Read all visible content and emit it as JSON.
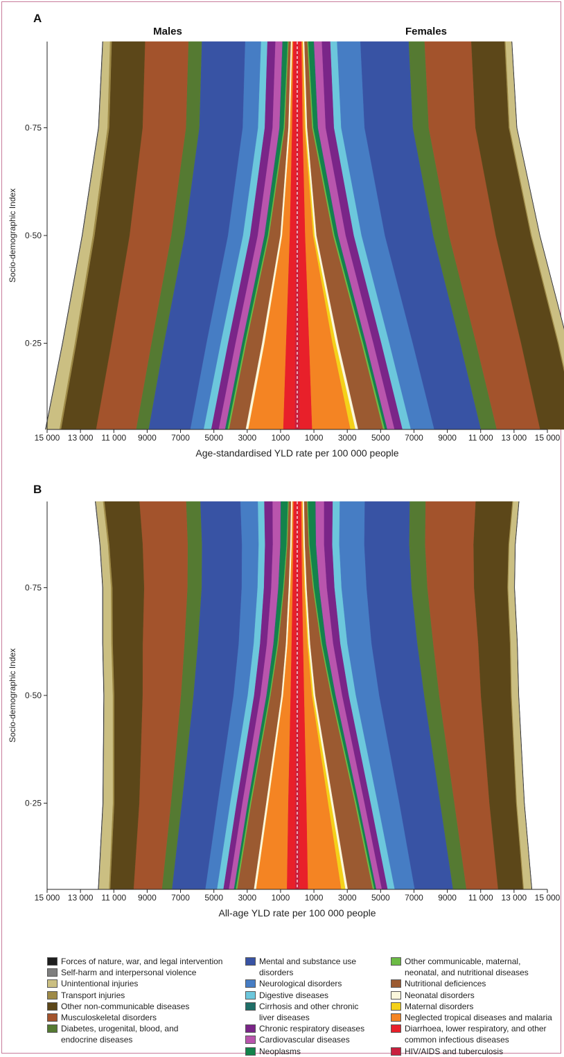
{
  "panels": [
    {
      "letter": "A",
      "male_label": "Males",
      "female_label": "Females",
      "xlabel": "Age-standardised YLD rate per 100 000 people",
      "ylabel": "Socio-demographic Index",
      "yticks": [
        "0·25",
        "0·50",
        "0·75"
      ],
      "xticks": [
        "15 000",
        "13 000",
        "11 000",
        "9000",
        "7000",
        "5000",
        "3000",
        "1000",
        "1000",
        "3000",
        "5000",
        "7000",
        "9000",
        "11 000",
        "13 000",
        "15 000"
      ]
    },
    {
      "letter": "B",
      "xlabel": "All-age YLD rate per 100 000 people",
      "ylabel": "Socio-demographic Index",
      "yticks": [
        "0·25",
        "0·50",
        "0·75"
      ],
      "xticks": [
        "15 000",
        "13 000",
        "11 000",
        "9000",
        "7000",
        "5000",
        "3000",
        "1000",
        "1000",
        "3000",
        "5000",
        "7000",
        "9000",
        "11 000",
        "13 000",
        "15 000"
      ]
    }
  ],
  "legend": [
    {
      "label": "Forces of nature, war, and legal intervention",
      "color": "#1e1e1e"
    },
    {
      "label": "Self-harm and interpersonal violence",
      "color": "#7f7f7f"
    },
    {
      "label": "Unintentional injuries",
      "color": "#cbbf82"
    },
    {
      "label": "Transport injuries",
      "color": "#9e8a47"
    },
    {
      "label": "Other non-communicable diseases",
      "color": "#5c4719"
    },
    {
      "label": "Musculoskeletal disorders",
      "color": "#a3532c"
    },
    {
      "label": "Diabetes, urogenital, blood, and endocrine diseases",
      "color": "#557a32"
    },
    {
      "label": "Mental and substance use disorders",
      "color": "#3853a4"
    },
    {
      "label": "Neurological disorders",
      "color": "#467dc4"
    },
    {
      "label": "Digestive diseases",
      "color": "#6cc7dc"
    },
    {
      "label": "Cirrhosis and other chronic liver diseases",
      "color": "#1f6e67"
    },
    {
      "label": "Chronic respiratory diseases",
      "color": "#7a2588"
    },
    {
      "label": "Cardiovascular diseases",
      "color": "#b955ad"
    },
    {
      "label": "Neoplasms",
      "color": "#13834b"
    },
    {
      "label": "Other communicable, maternal, neonatal, and nutritional diseases",
      "color": "#6cbb45"
    },
    {
      "label": "Nutritional deficiences",
      "color": "#9b5a31"
    },
    {
      "label": "Neonatal disorders",
      "color": "#fbf7dc"
    },
    {
      "label": "Maternal disorders",
      "color": "#f4d11a"
    },
    {
      "label": "Neglected tropical diseases and malaria",
      "color": "#f48423"
    },
    {
      "label": "Diarrhoea, lower respiratory, and other common infectious diseases",
      "color": "#e8202a"
    },
    {
      "label": "HIV/AIDS and tuberculosis",
      "color": "#c81f3d"
    }
  ],
  "chart_data": [
    {
      "type": "area",
      "title": "A",
      "xlabel": "Age-standardised YLD rate per 100 000 people",
      "ylabel": "Socio-demographic Index",
      "ylim": [
        0.05,
        0.95
      ],
      "xlim": [
        -15000,
        15000
      ],
      "sdi": [
        0.05,
        0.25,
        0.5,
        0.75,
        0.95
      ],
      "series": [
        {
          "name": "HIV/AIDS and tuberculosis",
          "male": [
            150,
            120,
            80,
            60,
            50
          ],
          "female": [
            150,
            120,
            80,
            60,
            50
          ]
        },
        {
          "name": "Diarrhoea, lower respiratory, and other common infectious diseases",
          "male": [
            700,
            560,
            380,
            260,
            200
          ],
          "female": [
            750,
            600,
            400,
            270,
            210
          ]
        },
        {
          "name": "Neglected tropical diseases and malaria",
          "male": [
            2100,
            1300,
            460,
            130,
            60
          ],
          "female": [
            2300,
            1400,
            480,
            130,
            60
          ]
        },
        {
          "name": "Maternal disorders",
          "male": [
            0,
            0,
            0,
            0,
            0
          ],
          "female": [
            300,
            200,
            90,
            50,
            30
          ]
        },
        {
          "name": "Neonatal disorders",
          "male": [
            150,
            140,
            100,
            90,
            80
          ],
          "female": [
            160,
            150,
            110,
            90,
            80
          ]
        },
        {
          "name": "Nutritional deficiences",
          "male": [
            1000,
            950,
            680,
            220,
            140
          ],
          "female": [
            1500,
            1400,
            1000,
            300,
            180
          ]
        },
        {
          "name": "Other communicable, maternal, neonatal, and nutritional diseases",
          "male": [
            90,
            80,
            70,
            60,
            50
          ],
          "female": [
            100,
            90,
            80,
            70,
            60
          ]
        },
        {
          "name": "Neoplasms",
          "male": [
            110,
            130,
            170,
            220,
            280
          ],
          "female": [
            110,
            130,
            180,
            240,
            300
          ]
        },
        {
          "name": "Cirrhosis and other chronic liver diseases",
          "male": [
            40,
            40,
            40,
            40,
            40
          ],
          "female": [
            40,
            40,
            40,
            40,
            40
          ]
        },
        {
          "name": "Cardiovascular diseases",
          "male": [
            380,
            390,
            400,
            410,
            420
          ],
          "female": [
            430,
            440,
            450,
            460,
            470
          ]
        },
        {
          "name": "Chronic respiratory diseases",
          "male": [
            450,
            450,
            460,
            470,
            480
          ],
          "female": [
            480,
            480,
            490,
            500,
            510
          ]
        },
        {
          "name": "Digestive diseases",
          "male": [
            450,
            440,
            420,
            400,
            380
          ],
          "female": [
            500,
            480,
            460,
            430,
            400
          ]
        },
        {
          "name": "Neurological disorders",
          "male": [
            800,
            850,
            900,
            920,
            950
          ],
          "female": [
            1400,
            1400,
            1400,
            1400,
            1400
          ]
        },
        {
          "name": "Mental and substance use disorders",
          "male": [
            2500,
            2550,
            2600,
            2600,
            2600
          ],
          "female": [
            2800,
            2850,
            2900,
            2900,
            2900
          ]
        },
        {
          "name": "Diabetes, urogenital, blood, and endocrine diseases",
          "male": [
            750,
            750,
            800,
            800,
            800
          ],
          "female": [
            950,
            950,
            950,
            950,
            950
          ]
        },
        {
          "name": "Musculoskeletal disorders",
          "male": [
            2400,
            2400,
            2500,
            2600,
            2600
          ],
          "female": [
            2600,
            2700,
            2800,
            2800,
            2800
          ]
        },
        {
          "name": "Other non-communicable diseases",
          "male": [
            2100,
            2100,
            2100,
            2000,
            2000
          ],
          "female": [
            2200,
            2200,
            2100,
            2000,
            2000
          ]
        },
        {
          "name": "Transport injuries",
          "male": [
            100,
            100,
            110,
            110,
            110
          ],
          "female": [
            60,
            60,
            60,
            60,
            60
          ]
        },
        {
          "name": "Unintentional injuries",
          "male": [
            800,
            700,
            600,
            500,
            400
          ],
          "female": [
            600,
            520,
            460,
            400,
            350
          ]
        },
        {
          "name": "Self-harm and interpersonal violence",
          "male": [
            30,
            30,
            30,
            30,
            30
          ],
          "female": [
            20,
            20,
            20,
            20,
            20
          ]
        },
        {
          "name": "Forces of nature, war, and legal intervention",
          "male": [
            10,
            10,
            10,
            10,
            10
          ],
          "female": [
            10,
            10,
            10,
            10,
            10
          ]
        }
      ]
    },
    {
      "type": "area",
      "title": "B",
      "xlabel": "All-age YLD rate per 100 000 people",
      "ylabel": "Socio-demographic Index",
      "ylim": [
        0.05,
        0.95
      ],
      "xlim": [
        -15000,
        15000
      ],
      "sdi": [
        0.05,
        0.25,
        0.5,
        0.62,
        0.75,
        0.85,
        0.95
      ],
      "series": [
        {
          "name": "HIV/AIDS and tuberculosis",
          "male": [
            130,
            110,
            80,
            70,
            60,
            55,
            50
          ],
          "female": [
            130,
            110,
            80,
            70,
            60,
            55,
            50
          ]
        },
        {
          "name": "Diarrhoea, lower respiratory, and other common infectious diseases",
          "male": [
            500,
            440,
            330,
            280,
            230,
            200,
            180
          ],
          "female": [
            520,
            450,
            340,
            290,
            240,
            210,
            190
          ]
        },
        {
          "name": "Neglected tropical diseases and malaria",
          "male": [
            1850,
            1200,
            450,
            250,
            140,
            90,
            70
          ],
          "female": [
            2000,
            1300,
            470,
            260,
            140,
            90,
            70
          ]
        },
        {
          "name": "Maternal disorders",
          "male": [
            0,
            0,
            0,
            0,
            0,
            0,
            0
          ],
          "female": [
            250,
            180,
            90,
            60,
            40,
            30,
            25
          ]
        },
        {
          "name": "Neonatal disorders",
          "male": [
            130,
            120,
            100,
            90,
            90,
            80,
            80
          ],
          "female": [
            140,
            130,
            110,
            100,
            90,
            80,
            80
          ]
        },
        {
          "name": "Nutritional deficiences",
          "male": [
            1000,
            900,
            650,
            450,
            280,
            180,
            140
          ],
          "female": [
            1500,
            1300,
            950,
            650,
            380,
            230,
            180
          ]
        },
        {
          "name": "Other communicable, maternal, neonatal, and nutritional diseases",
          "male": [
            80,
            70,
            60,
            60,
            50,
            50,
            50
          ],
          "female": [
            90,
            80,
            70,
            60,
            60,
            50,
            50
          ]
        },
        {
          "name": "Neoplasms",
          "male": [
            90,
            110,
            150,
            200,
            260,
            330,
            400
          ],
          "female": [
            90,
            110,
            160,
            210,
            280,
            350,
            420
          ]
        },
        {
          "name": "Cirrhosis and other chronic liver diseases",
          "male": [
            30,
            30,
            40,
            40,
            40,
            40,
            40
          ],
          "female": [
            30,
            30,
            40,
            40,
            40,
            40,
            40
          ]
        },
        {
          "name": "Cardiovascular diseases",
          "male": [
            300,
            320,
            360,
            390,
            420,
            450,
            480
          ],
          "female": [
            330,
            350,
            390,
            420,
            450,
            480,
            510
          ]
        },
        {
          "name": "Chronic respiratory diseases",
          "male": [
            330,
            350,
            380,
            410,
            440,
            470,
            500
          ],
          "female": [
            350,
            370,
            400,
            430,
            460,
            490,
            520
          ]
        },
        {
          "name": "Digestive diseases",
          "male": [
            380,
            380,
            380,
            380,
            380,
            380,
            380
          ],
          "female": [
            420,
            420,
            420,
            420,
            420,
            420,
            420
          ]
        },
        {
          "name": "Neurological disorders",
          "male": [
            700,
            750,
            850,
            900,
            950,
            1000,
            1050
          ],
          "female": [
            1200,
            1300,
            1400,
            1450,
            1500,
            1500,
            1500
          ]
        },
        {
          "name": "Mental and substance use disorders",
          "male": [
            2000,
            2150,
            2400,
            2450,
            2400,
            2400,
            2400
          ],
          "female": [
            2300,
            2450,
            2700,
            2750,
            2700,
            2700,
            2700
          ]
        },
        {
          "name": "Diabetes, urogenital, blood, and endocrine diseases",
          "male": [
            600,
            650,
            750,
            800,
            850,
            850,
            850
          ],
          "female": [
            800,
            850,
            900,
            950,
            950,
            950,
            950
          ]
        },
        {
          "name": "Musculoskeletal disorders",
          "male": [
            1700,
            1900,
            2300,
            2500,
            2600,
            2700,
            2800
          ],
          "female": [
            1900,
            2100,
            2500,
            2700,
            2800,
            2900,
            3000
          ]
        },
        {
          "name": "Other non-communicable diseases",
          "male": [
            1400,
            1500,
            1700,
            1800,
            1900,
            2000,
            2100
          ],
          "female": [
            1500,
            1600,
            1800,
            1900,
            2000,
            2100,
            2200
          ]
        },
        {
          "name": "Transport injuries",
          "male": [
            80,
            85,
            90,
            90,
            90,
            90,
            90
          ],
          "female": [
            50,
            50,
            50,
            50,
            50,
            50,
            50
          ]
        },
        {
          "name": "Unintentional injuries",
          "male": [
            600,
            560,
            500,
            480,
            460,
            440,
            420
          ],
          "female": [
            450,
            420,
            390,
            370,
            350,
            330,
            320
          ]
        },
        {
          "name": "Self-harm and interpersonal violence",
          "male": [
            30,
            30,
            30,
            30,
            30,
            30,
            30
          ],
          "female": [
            20,
            20,
            20,
            20,
            20,
            20,
            20
          ]
        },
        {
          "name": "Forces of nature, war, and legal intervention",
          "male": [
            10,
            10,
            10,
            10,
            10,
            10,
            10
          ],
          "female": [
            10,
            10,
            10,
            10,
            10,
            10,
            10
          ]
        }
      ]
    }
  ]
}
